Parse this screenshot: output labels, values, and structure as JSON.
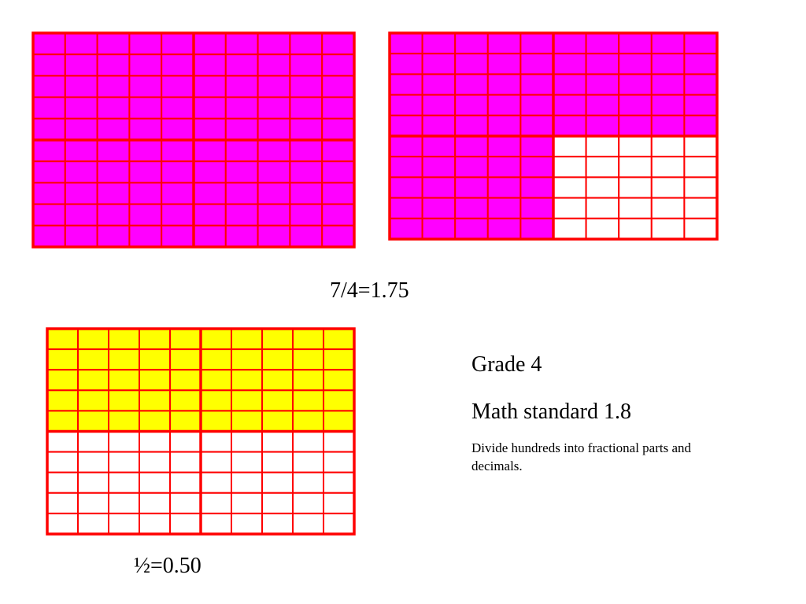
{
  "colors": {
    "shaded_quarter": "#ff00ff",
    "shaded_half": "#ffff00",
    "unshaded": "#ffffff",
    "grid_line": "#ff0000"
  },
  "grids": [
    {
      "id": "whole-hundred-grid",
      "rows": 10,
      "cols": 10,
      "fill_color": "#ff00ff",
      "shaded_regions": [
        {
          "row_start": 0,
          "row_end": 10,
          "col_start": 0,
          "col_end": 10
        }
      ],
      "shaded_fraction": 1.0
    },
    {
      "id": "three-quarters-grid",
      "rows": 10,
      "cols": 10,
      "fill_color": "#ff00ff",
      "shaded_regions": [
        {
          "row_start": 0,
          "row_end": 5,
          "col_start": 0,
          "col_end": 10
        },
        {
          "row_start": 5,
          "row_end": 10,
          "col_start": 0,
          "col_end": 5
        }
      ],
      "shaded_fraction": 0.75
    },
    {
      "id": "one-half-grid",
      "rows": 10,
      "cols": 10,
      "fill_color": "#ffff00",
      "shaded_regions": [
        {
          "row_start": 0,
          "row_end": 5,
          "col_start": 0,
          "col_end": 10
        }
      ],
      "shaded_fraction": 0.5
    }
  ],
  "captions": {
    "top": "7/4=1.75",
    "bottom": "½=0.50"
  },
  "info": {
    "grade": "Grade 4",
    "standard": "Math standard 1.8",
    "description": "Divide hundreds into fractional parts and decimals."
  }
}
